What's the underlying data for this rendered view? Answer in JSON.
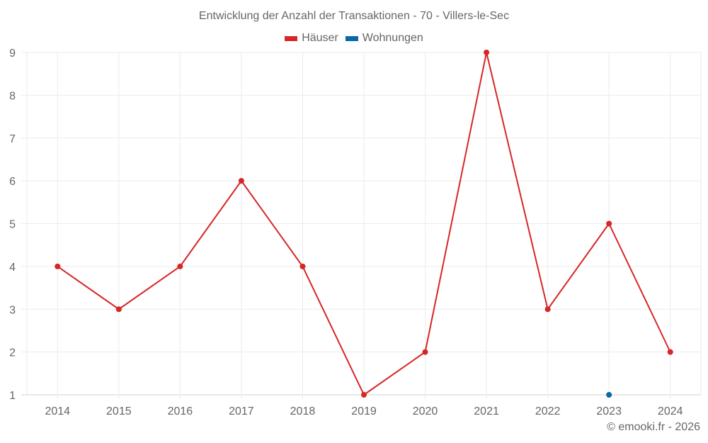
{
  "chart_data": {
    "type": "line",
    "title": "Entwicklung der Anzahl der Transaktionen - 70 - Villers-le-Sec",
    "xlabel": "",
    "ylabel": "",
    "categories": [
      "2014",
      "2015",
      "2016",
      "2017",
      "2018",
      "2019",
      "2020",
      "2021",
      "2022",
      "2023",
      "2024"
    ],
    "series": [
      {
        "name": "Häuser",
        "color": "#d62728",
        "values": [
          4,
          3,
          4,
          6,
          4,
          1,
          2,
          9,
          3,
          5,
          2
        ]
      },
      {
        "name": "Wohnungen",
        "color": "#0868a8",
        "values": [
          null,
          null,
          null,
          null,
          null,
          null,
          null,
          null,
          null,
          1,
          null
        ]
      }
    ],
    "ylim": [
      1,
      9
    ],
    "yticks": [
      1,
      2,
      3,
      4,
      5,
      6,
      7,
      8,
      9
    ],
    "grid": true,
    "legend_position": "top"
  },
  "legend": {
    "items": [
      {
        "label": "Häuser",
        "color": "#d62728"
      },
      {
        "label": "Wohnungen",
        "color": "#0868a8"
      }
    ]
  },
  "credit": "© emooki.fr - 2026"
}
